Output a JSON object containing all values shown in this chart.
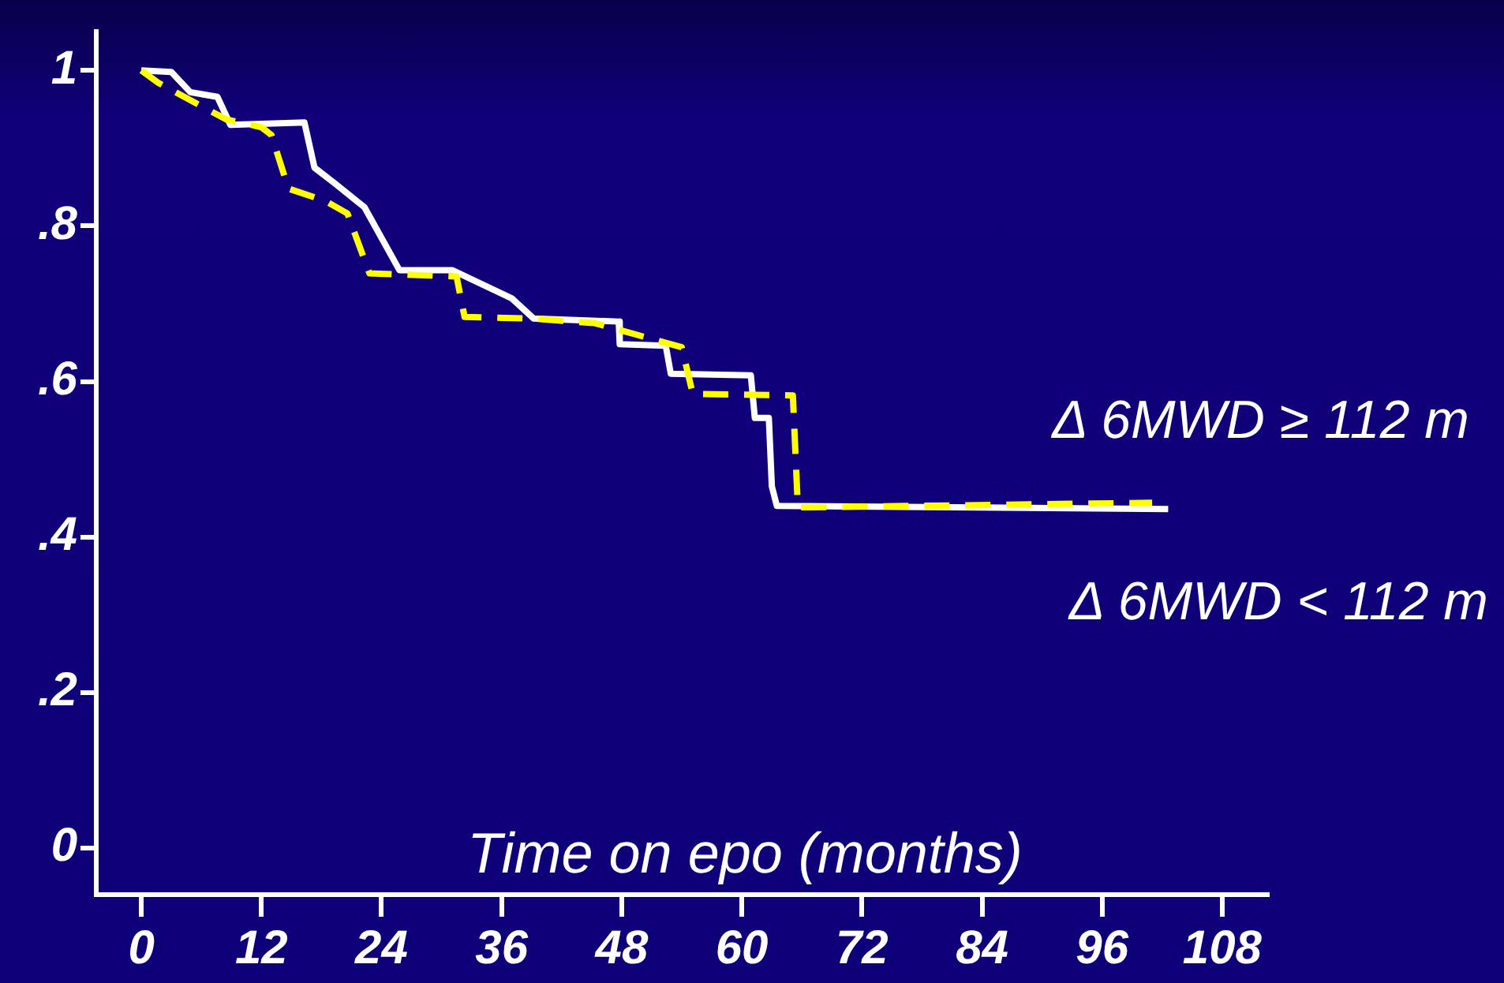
{
  "chart_data": {
    "type": "line",
    "xlabel": "Time on epo (months)",
    "xlim": [
      -4.5,
      112.5
    ],
    "ylim": [
      -0.06,
      1.05
    ],
    "xticks": [
      0,
      12,
      24,
      36,
      48,
      60,
      72,
      84,
      96,
      108
    ],
    "yticks": [
      0,
      {
        "value": 0.2,
        "label": ".2"
      },
      {
        "value": 0.4,
        "label": ".4"
      },
      {
        "value": 0.6,
        "label": ".6"
      },
      {
        "value": 0.8,
        "label": ".8"
      },
      1
    ],
    "grid": false,
    "legend": false,
    "marker": "none",
    "series": [
      {
        "name": "Δ 6MWD ≥ 112 m",
        "color": "#ffff00",
        "line_style": "dashed",
        "x": [
          0,
          1.7,
          6,
          8.5,
          12,
          13,
          14.7,
          18.4,
          20.6,
          22.8,
          31.5,
          32.3,
          39,
          45.3,
          54,
          55.1,
          65.1,
          65.6,
          101
        ],
        "values": [
          1,
          0.984,
          0.954,
          0.937,
          0.927,
          0.917,
          0.848,
          0.832,
          0.816,
          0.739,
          0.735,
          0.683,
          0.681,
          0.675,
          0.644,
          0.584,
          0.582,
          0.438,
          0.444
        ]
      },
      {
        "name": "Δ 6MWD < 112 m",
        "color": "#ffffff",
        "line_style": "solid",
        "x": [
          0,
          3,
          4.9,
          7.6,
          8.9,
          16.3,
          17.3,
          19.3,
          22.3,
          25.8,
          31.1,
          37,
          39.2,
          47.7,
          47.8,
          52.4,
          52.9,
          60.9,
          61.3,
          62.7,
          63,
          63.5,
          102.6
        ],
        "values": [
          1,
          0.998,
          0.972,
          0.966,
          0.93,
          0.933,
          0.875,
          0.855,
          0.824,
          0.743,
          0.743,
          0.707,
          0.681,
          0.677,
          0.648,
          0.646,
          0.61,
          0.608,
          0.553,
          0.553,
          0.465,
          0.44,
          0.436
        ]
      }
    ]
  }
}
